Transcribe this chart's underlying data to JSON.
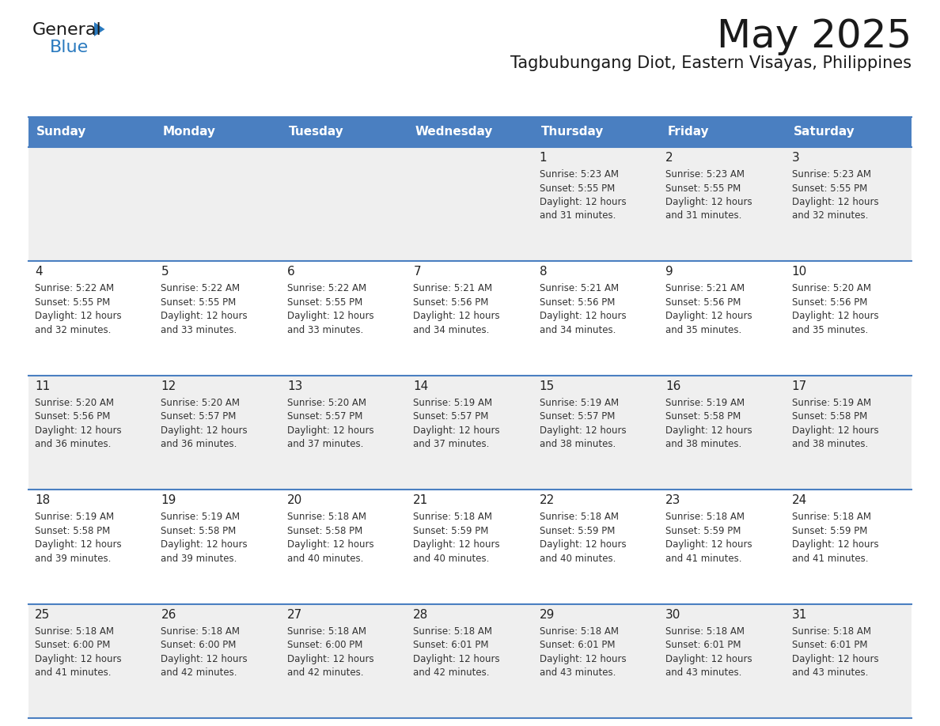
{
  "title": "May 2025",
  "subtitle": "Tagbubungang Diot, Eastern Visayas, Philippines",
  "days_of_week": [
    "Sunday",
    "Monday",
    "Tuesday",
    "Wednesday",
    "Thursday",
    "Friday",
    "Saturday"
  ],
  "header_bg": "#4a7fc1",
  "header_text": "#FFFFFF",
  "row_bg_odd": "#EFEFEF",
  "row_bg_even": "#FFFFFF",
  "day_num_color": "#222222",
  "cell_text_color": "#333333",
  "title_color": "#1a1a1a",
  "subtitle_color": "#1a1a1a",
  "border_color": "#4a7fc1",
  "calendar_data": [
    [
      {
        "day": "",
        "sunrise": "",
        "sunset": "",
        "daylight": ""
      },
      {
        "day": "",
        "sunrise": "",
        "sunset": "",
        "daylight": ""
      },
      {
        "day": "",
        "sunrise": "",
        "sunset": "",
        "daylight": ""
      },
      {
        "day": "",
        "sunrise": "",
        "sunset": "",
        "daylight": ""
      },
      {
        "day": "1",
        "sunrise": "5:23 AM",
        "sunset": "5:55 PM",
        "daylight": "12 hours and 31 minutes."
      },
      {
        "day": "2",
        "sunrise": "5:23 AM",
        "sunset": "5:55 PM",
        "daylight": "12 hours and 31 minutes."
      },
      {
        "day": "3",
        "sunrise": "5:23 AM",
        "sunset": "5:55 PM",
        "daylight": "12 hours and 32 minutes."
      }
    ],
    [
      {
        "day": "4",
        "sunrise": "5:22 AM",
        "sunset": "5:55 PM",
        "daylight": "12 hours and 32 minutes."
      },
      {
        "day": "5",
        "sunrise": "5:22 AM",
        "sunset": "5:55 PM",
        "daylight": "12 hours and 33 minutes."
      },
      {
        "day": "6",
        "sunrise": "5:22 AM",
        "sunset": "5:55 PM",
        "daylight": "12 hours and 33 minutes."
      },
      {
        "day": "7",
        "sunrise": "5:21 AM",
        "sunset": "5:56 PM",
        "daylight": "12 hours and 34 minutes."
      },
      {
        "day": "8",
        "sunrise": "5:21 AM",
        "sunset": "5:56 PM",
        "daylight": "12 hours and 34 minutes."
      },
      {
        "day": "9",
        "sunrise": "5:21 AM",
        "sunset": "5:56 PM",
        "daylight": "12 hours and 35 minutes."
      },
      {
        "day": "10",
        "sunrise": "5:20 AM",
        "sunset": "5:56 PM",
        "daylight": "12 hours and 35 minutes."
      }
    ],
    [
      {
        "day": "11",
        "sunrise": "5:20 AM",
        "sunset": "5:56 PM",
        "daylight": "12 hours and 36 minutes."
      },
      {
        "day": "12",
        "sunrise": "5:20 AM",
        "sunset": "5:57 PM",
        "daylight": "12 hours and 36 minutes."
      },
      {
        "day": "13",
        "sunrise": "5:20 AM",
        "sunset": "5:57 PM",
        "daylight": "12 hours and 37 minutes."
      },
      {
        "day": "14",
        "sunrise": "5:19 AM",
        "sunset": "5:57 PM",
        "daylight": "12 hours and 37 minutes."
      },
      {
        "day": "15",
        "sunrise": "5:19 AM",
        "sunset": "5:57 PM",
        "daylight": "12 hours and 38 minutes."
      },
      {
        "day": "16",
        "sunrise": "5:19 AM",
        "sunset": "5:58 PM",
        "daylight": "12 hours and 38 minutes."
      },
      {
        "day": "17",
        "sunrise": "5:19 AM",
        "sunset": "5:58 PM",
        "daylight": "12 hours and 38 minutes."
      }
    ],
    [
      {
        "day": "18",
        "sunrise": "5:19 AM",
        "sunset": "5:58 PM",
        "daylight": "12 hours and 39 minutes."
      },
      {
        "day": "19",
        "sunrise": "5:19 AM",
        "sunset": "5:58 PM",
        "daylight": "12 hours and 39 minutes."
      },
      {
        "day": "20",
        "sunrise": "5:18 AM",
        "sunset": "5:58 PM",
        "daylight": "12 hours and 40 minutes."
      },
      {
        "day": "21",
        "sunrise": "5:18 AM",
        "sunset": "5:59 PM",
        "daylight": "12 hours and 40 minutes."
      },
      {
        "day": "22",
        "sunrise": "5:18 AM",
        "sunset": "5:59 PM",
        "daylight": "12 hours and 40 minutes."
      },
      {
        "day": "23",
        "sunrise": "5:18 AM",
        "sunset": "5:59 PM",
        "daylight": "12 hours and 41 minutes."
      },
      {
        "day": "24",
        "sunrise": "5:18 AM",
        "sunset": "5:59 PM",
        "daylight": "12 hours and 41 minutes."
      }
    ],
    [
      {
        "day": "25",
        "sunrise": "5:18 AM",
        "sunset": "6:00 PM",
        "daylight": "12 hours and 41 minutes."
      },
      {
        "day": "26",
        "sunrise": "5:18 AM",
        "sunset": "6:00 PM",
        "daylight": "12 hours and 42 minutes."
      },
      {
        "day": "27",
        "sunrise": "5:18 AM",
        "sunset": "6:00 PM",
        "daylight": "12 hours and 42 minutes."
      },
      {
        "day": "28",
        "sunrise": "5:18 AM",
        "sunset": "6:01 PM",
        "daylight": "12 hours and 42 minutes."
      },
      {
        "day": "29",
        "sunrise": "5:18 AM",
        "sunset": "6:01 PM",
        "daylight": "12 hours and 43 minutes."
      },
      {
        "day": "30",
        "sunrise": "5:18 AM",
        "sunset": "6:01 PM",
        "daylight": "12 hours and 43 minutes."
      },
      {
        "day": "31",
        "sunrise": "5:18 AM",
        "sunset": "6:01 PM",
        "daylight": "12 hours and 43 minutes."
      }
    ]
  ],
  "logo_general_color": "#1a1a1a",
  "logo_blue_color": "#2a7abf",
  "logo_triangle_color": "#2a7abf"
}
